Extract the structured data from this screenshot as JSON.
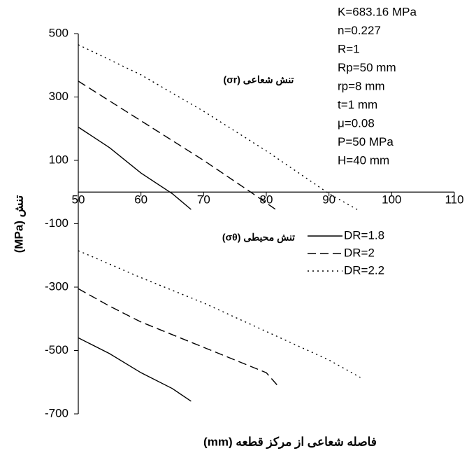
{
  "chart_data": {
    "type": "line",
    "x_label": "فاصله شعاعی از مرکز قطعه (mm)",
    "y_label": "تنش (MPa)",
    "xlim": [
      50,
      110
    ],
    "xticks": [
      50,
      60,
      70,
      80,
      90,
      100,
      110
    ],
    "ylim": [
      -700,
      500
    ],
    "yticks": [
      -700,
      -500,
      -300,
      -100,
      100,
      300,
      500
    ],
    "annotations": [
      "K=683.16 MPa",
      "n=0.227",
      "R=1",
      "Rp=50 mm",
      "rp=8 mm",
      "t=1 mm",
      "μ=0.08",
      "P=50 MPa",
      "H=40 mm"
    ],
    "curve_labels": [
      "تنش شعاعی (σr)",
      "تنش محیطی (σθ)"
    ],
    "series": [
      {
        "name": "DR=1.8",
        "color": "#000000",
        "dash": "solid",
        "curves": [
          {
            "x": [
              50,
              55,
              60,
              65,
              68
            ],
            "values": [
              205,
              140,
              60,
              -5,
              -55
            ]
          },
          {
            "x": [
              50,
              55,
              60,
              65,
              68
            ],
            "values": [
              -460,
              -510,
              -570,
              -620,
              -660
            ]
          }
        ]
      },
      {
        "name": "DR=2",
        "color": "#000000",
        "dash": "dashed",
        "curves": [
          {
            "x": [
              50,
              60,
              70,
              77.5,
              81.5
            ],
            "values": [
              350,
              225,
              100,
              0,
              -55
            ]
          },
          {
            "x": [
              50,
              55,
              60,
              70,
              80,
              82
            ],
            "values": [
              -305,
              -360,
              -410,
              -490,
              -570,
              -615
            ]
          }
        ]
      },
      {
        "name": "DR=2.2",
        "color": "#000000",
        "dash": "dotted",
        "curves": [
          {
            "x": [
              50,
              60,
              70,
              80,
              90,
              94.5
            ],
            "values": [
              465,
              370,
              255,
              130,
              -5,
              -55
            ]
          },
          {
            "x": [
              50,
              60,
              70,
              80,
              90,
              95
            ],
            "values": [
              -185,
              -270,
              -350,
              -440,
              -530,
              -585
            ]
          }
        ]
      }
    ]
  }
}
